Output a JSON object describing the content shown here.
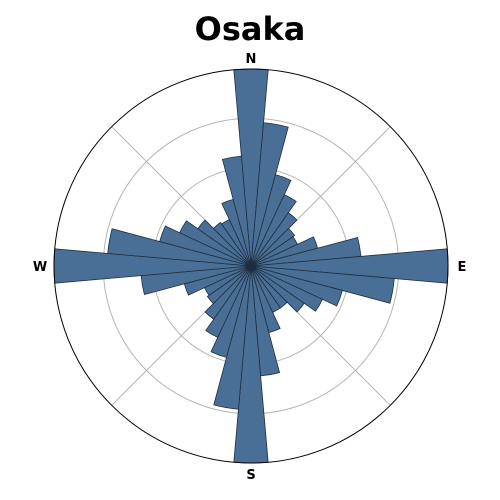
{
  "chart_data": {
    "type": "polar_bar",
    "title": "Osaka",
    "directions": [
      "N",
      "E",
      "S",
      "W"
    ],
    "bins": 36,
    "bin_width_deg": 10,
    "theta_start_deg": 0,
    "direction": "clockwise",
    "rmax": 1.0,
    "rgrid": [
      0.25,
      0.5,
      0.75
    ],
    "theta_grid_deg": [
      45,
      135,
      225,
      315
    ],
    "values": [
      1.0,
      0.73,
      0.48,
      0.4,
      0.33,
      0.27,
      0.26,
      0.35,
      0.56,
      1.0,
      0.73,
      0.48,
      0.4,
      0.33,
      0.26,
      0.26,
      0.35,
      0.56,
      1.0,
      0.73,
      0.48,
      0.4,
      0.33,
      0.27,
      0.26,
      0.35,
      0.56,
      1.0,
      0.73,
      0.48,
      0.4,
      0.33,
      0.27,
      0.26,
      0.35,
      0.56
    ],
    "bar_color": "#4a6f96",
    "edge_color": "#1f2f40"
  }
}
